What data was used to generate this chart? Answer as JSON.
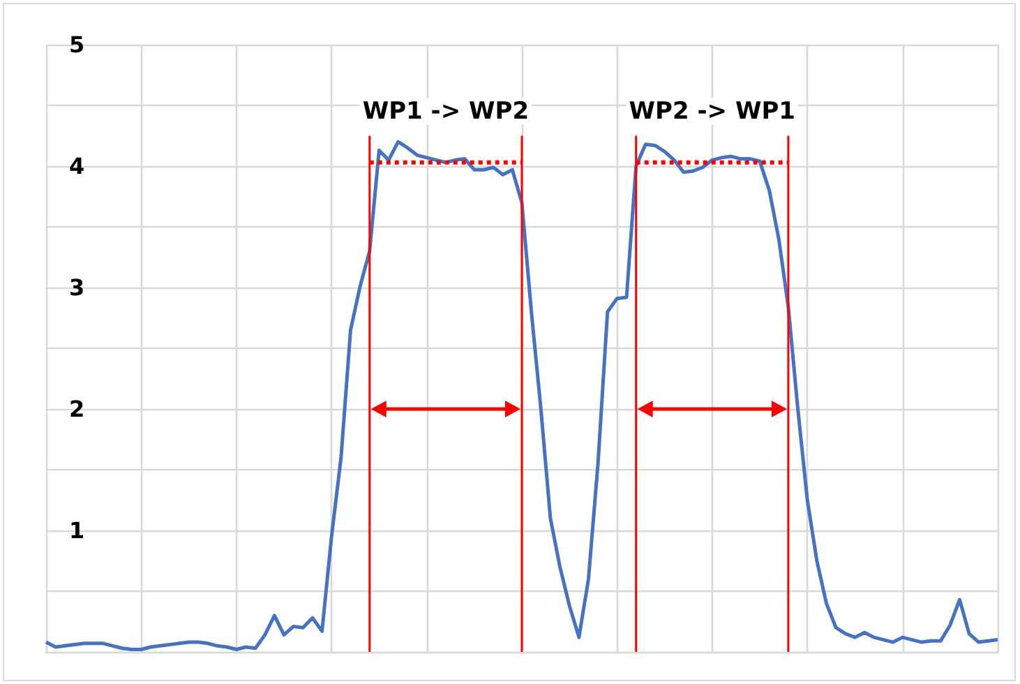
{
  "chart_data": {
    "type": "line",
    "categories": [
      null,
      null,
      null,
      null,
      null,
      null,
      null,
      null,
      null,
      null,
      null,
      null,
      null,
      null,
      null,
      null,
      null,
      null,
      null,
      null,
      null,
      null,
      null,
      null,
      null,
      null,
      null,
      null,
      null,
      null,
      null,
      null,
      null,
      null,
      null,
      null,
      null,
      null,
      null,
      null,
      null,
      null,
      null,
      null,
      null,
      null,
      null,
      null,
      null,
      null,
      null,
      null,
      null,
      null,
      null,
      null,
      null,
      null,
      null,
      null,
      null,
      null,
      null,
      null,
      null,
      null,
      null,
      null,
      null,
      null,
      null,
      null,
      null,
      null,
      null,
      null,
      null,
      null,
      null,
      null,
      null,
      null,
      null,
      null,
      null,
      null,
      null,
      null,
      null,
      null,
      null,
      null,
      null,
      null,
      null,
      null,
      null,
      null,
      null,
      null,
      null
    ],
    "ylim": [
      0,
      5
    ],
    "yticks": [
      {
        "value": 0,
        "label": null
      },
      {
        "value": 0.5,
        "label": null
      },
      1,
      {
        "value": 1.5,
        "label": null
      },
      2,
      {
        "value": 2.5,
        "label": null
      },
      3,
      {
        "value": 3.5,
        "label": null
      },
      4,
      {
        "value": 4.5,
        "label": null
      },
      5
    ],
    "tick_labels": "y",
    "grid": true,
    "series": [
      {
        "color": "#4472c4",
        "line_style": "solid",
        "values": [
          0.08,
          0.04,
          0.05,
          0.06,
          0.07,
          0.07,
          0.07,
          0.05,
          0.03,
          0.02,
          0.02,
          0.04,
          0.05,
          0.06,
          0.07,
          0.08,
          0.08,
          0.07,
          0.05,
          0.04,
          0.02,
          0.04,
          0.03,
          0.14,
          0.3,
          0.14,
          0.21,
          0.2,
          0.28,
          0.17,
          0.95,
          1.6,
          2.65,
          3.01,
          3.3,
          4.13,
          4.05,
          4.2,
          4.15,
          4.09,
          4.07,
          4.05,
          4.03,
          4.05,
          4.06,
          3.97,
          3.97,
          3.99,
          3.93,
          3.97,
          3.7,
          2.8,
          2.0,
          1.1,
          0.7,
          0.38,
          0.12,
          0.6,
          1.55,
          2.8,
          2.91,
          2.92,
          4.0,
          4.18,
          4.17,
          4.12,
          4.05,
          3.95,
          3.96,
          3.99,
          4.05,
          4.07,
          4.08,
          4.06,
          4.06,
          4.04,
          3.8,
          3.4,
          2.84,
          2.0,
          1.25,
          0.75,
          0.4,
          0.2,
          0.15,
          0.12,
          0.16,
          0.12,
          0.1,
          0.08,
          0.12,
          0.1,
          0.08,
          0.09,
          0.09,
          0.22,
          0.43,
          0.15,
          0.08,
          0.09,
          0.1
        ]
      },
      {
        "color": "#ff0000",
        "line_style": "dotted",
        "values": [
          null,
          null,
          null,
          null,
          null,
          null,
          null,
          null,
          null,
          null,
          null,
          null,
          null,
          null,
          null,
          null,
          null,
          null,
          null,
          null,
          null,
          null,
          null,
          null,
          null,
          null,
          null,
          null,
          null,
          null,
          null,
          null,
          null,
          null,
          4.03,
          4.03,
          4.03,
          4.03,
          4.03,
          4.03,
          4.03,
          4.03,
          4.03,
          4.03,
          4.03,
          4.03,
          4.03,
          4.03,
          4.03,
          4.03,
          4.03,
          null,
          null,
          null,
          null,
          null,
          null,
          null,
          null,
          null,
          null,
          null,
          null,
          null,
          null,
          null,
          null,
          null,
          null,
          null,
          null,
          null,
          null,
          null,
          null,
          null,
          null,
          null,
          null,
          null,
          null,
          null,
          null,
          null,
          null,
          null,
          null,
          null,
          null,
          null,
          null,
          null,
          null,
          null,
          null,
          null,
          null,
          null,
          null,
          null,
          null
        ]
      },
      {
        "color": "#ff0000",
        "line_style": "dotted",
        "values": [
          null,
          null,
          null,
          null,
          null,
          null,
          null,
          null,
          null,
          null,
          null,
          null,
          null,
          null,
          null,
          null,
          null,
          null,
          null,
          null,
          null,
          null,
          null,
          null,
          null,
          null,
          null,
          null,
          null,
          null,
          null,
          null,
          null,
          null,
          null,
          null,
          null,
          null,
          null,
          null,
          null,
          null,
          null,
          null,
          null,
          null,
          null,
          null,
          null,
          null,
          null,
          null,
          null,
          null,
          null,
          null,
          null,
          null,
          null,
          null,
          null,
          null,
          4.03,
          4.03,
          4.03,
          4.03,
          4.03,
          4.03,
          4.03,
          4.03,
          4.03,
          4.03,
          4.03,
          4.03,
          4.03,
          4.03,
          4.03,
          4.03,
          4.03,
          null,
          null,
          null,
          null,
          null,
          null,
          null,
          null,
          null,
          null,
          null,
          null,
          null,
          null,
          null,
          null,
          null,
          null,
          null,
          null,
          null,
          null
        ]
      }
    ],
    "annotations": [
      "WP1 -> WP2",
      "WP2 -> WP1"
    ]
  }
}
